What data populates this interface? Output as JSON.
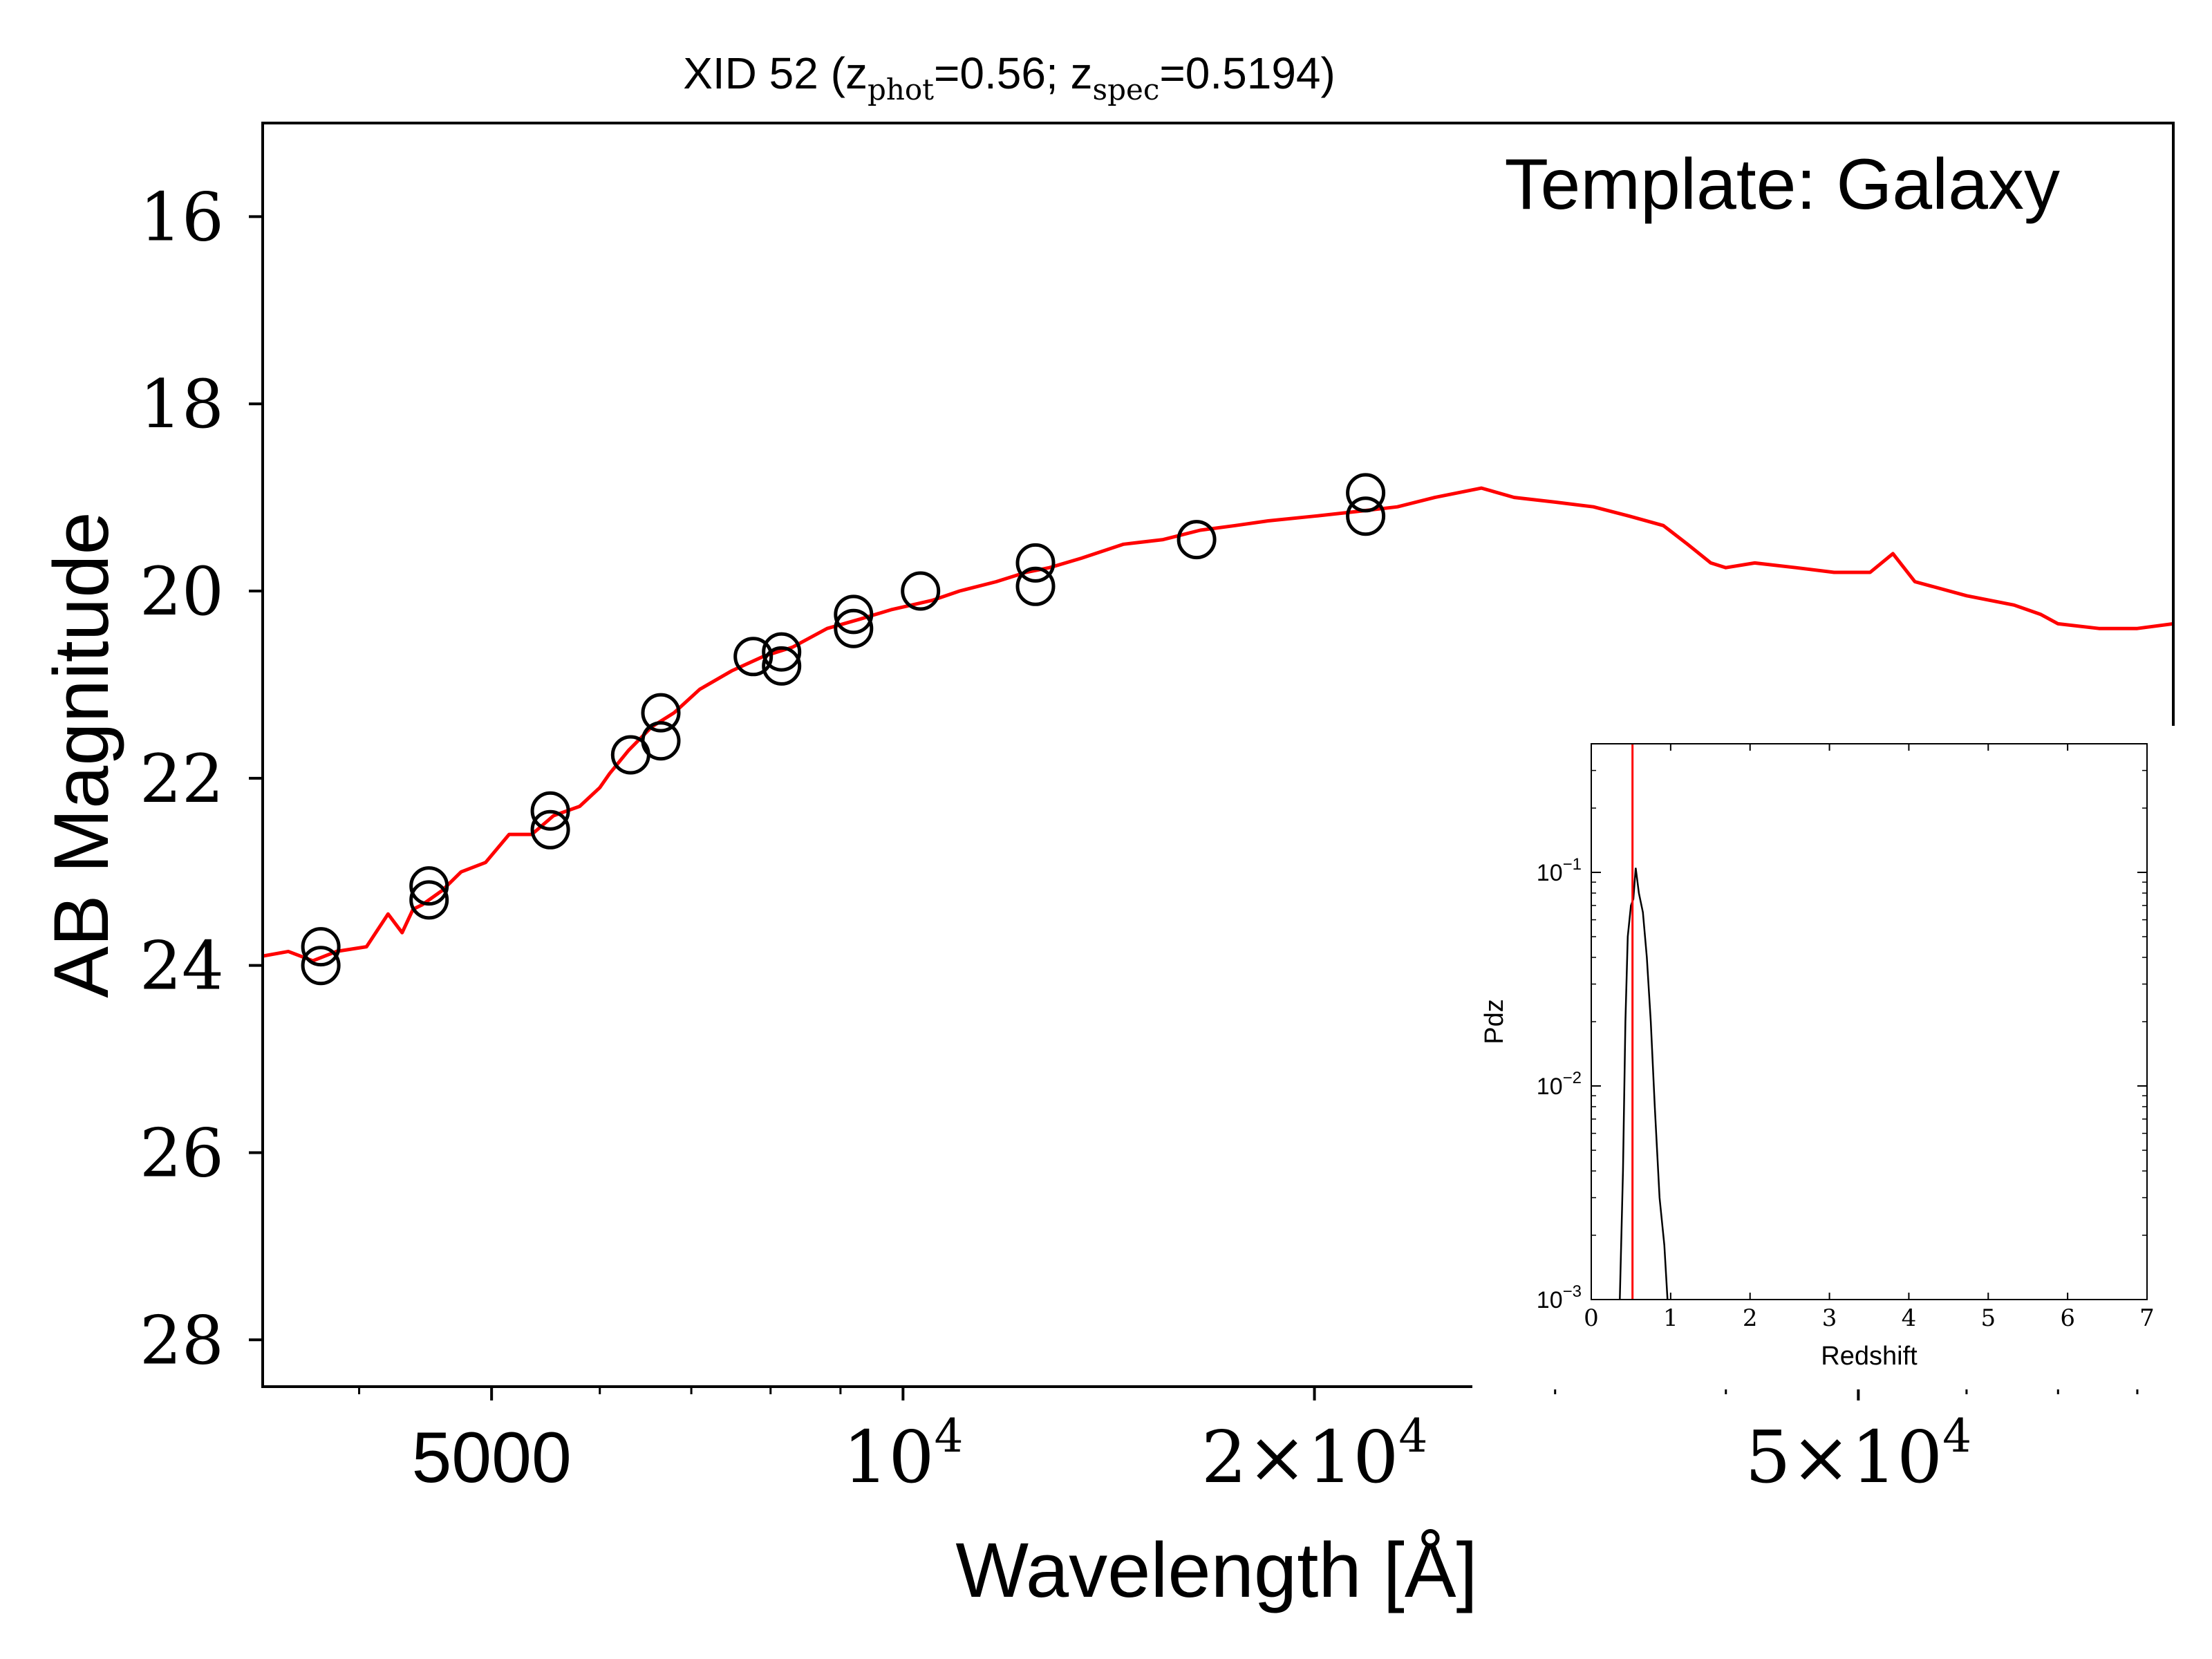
{
  "chart_data": [
    {
      "type": "scatter",
      "title": {
        "prefix": "XID 52 (z",
        "phot_sub": "phot",
        "phot_val": "=0.56; z",
        "spec_sub": "spec",
        "spec_val": "=0.5194)"
      },
      "annotation": "Template: Galaxy",
      "xlabel": "Wavelength [Å]",
      "ylabel": "AB Magnitude",
      "xscale": "log",
      "xlim": [
        3400,
        85000
      ],
      "ylim": [
        28.5,
        15.0
      ],
      "y_inverted": true,
      "grid": false,
      "legend": "none",
      "colors": {
        "template": "#ff0000",
        "photometry": "#000000"
      },
      "xticks": [
        {
          "value": 5000,
          "label": "5000"
        },
        {
          "value": 10000,
          "label": "10",
          "exp": "4"
        },
        {
          "value": 20000,
          "label": "2×10",
          "exp": "4"
        },
        {
          "value": 50000,
          "label": "5×10",
          "exp": "4"
        }
      ],
      "yticks": [
        16,
        18,
        20,
        22,
        24,
        26,
        28
      ],
      "series": [
        {
          "kind": "template_sed",
          "points": [
            [
              3400,
              23.9
            ],
            [
              3550,
              23.85
            ],
            [
              3700,
              23.95
            ],
            [
              3850,
              23.85
            ],
            [
              4050,
              23.8
            ],
            [
              4200,
              23.45
            ],
            [
              4300,
              23.65
            ],
            [
              4380,
              23.4
            ],
            [
              4450,
              23.35
            ],
            [
              4600,
              23.2
            ],
            [
              4750,
              23.0
            ],
            [
              4950,
              22.9
            ],
            [
              5150,
              22.6
            ],
            [
              5350,
              22.6
            ],
            [
              5550,
              22.4
            ],
            [
              5800,
              22.3
            ],
            [
              6000,
              22.1
            ],
            [
              6100,
              21.95
            ],
            [
              6300,
              21.7
            ],
            [
              6550,
              21.45
            ],
            [
              6800,
              21.3
            ],
            [
              7100,
              21.05
            ],
            [
              7500,
              20.85
            ],
            [
              7900,
              20.7
            ],
            [
              8300,
              20.6
            ],
            [
              8800,
              20.4
            ],
            [
              9300,
              20.3
            ],
            [
              9800,
              20.2
            ],
            [
              10500,
              20.1
            ],
            [
              11000,
              20.0
            ],
            [
              11700,
              19.9
            ],
            [
              12300,
              19.8
            ],
            [
              12800,
              19.75
            ],
            [
              13500,
              19.65
            ],
            [
              14500,
              19.5
            ],
            [
              15500,
              19.45
            ],
            [
              16500,
              19.35
            ],
            [
              17500,
              19.3
            ],
            [
              18500,
              19.25
            ],
            [
              20000,
              19.2
            ],
            [
              21500,
              19.15
            ],
            [
              23000,
              19.1
            ],
            [
              24500,
              19.0
            ],
            [
              26500,
              18.9
            ],
            [
              28000,
              19.0
            ],
            [
              30000,
              19.05
            ],
            [
              32000,
              19.1
            ],
            [
              34000,
              19.2
            ],
            [
              36000,
              19.3
            ],
            [
              37500,
              19.5
            ],
            [
              39000,
              19.7
            ],
            [
              40000,
              19.75
            ],
            [
              42000,
              19.7
            ],
            [
              45000,
              19.75
            ],
            [
              48000,
              19.8
            ],
            [
              51000,
              19.8
            ],
            [
              53000,
              19.6
            ],
            [
              55000,
              19.9
            ],
            [
              60000,
              20.05
            ],
            [
              65000,
              20.15
            ],
            [
              68000,
              20.25
            ],
            [
              70000,
              20.35
            ],
            [
              75000,
              20.4
            ],
            [
              80000,
              20.4
            ],
            [
              85000,
              20.35
            ]
          ]
        },
        {
          "kind": "photometry",
          "points": [
            [
              3750,
              23.8
            ],
            [
              3750,
              24.0
            ],
            [
              4500,
              23.15
            ],
            [
              4500,
              23.3
            ],
            [
              5520,
              22.35
            ],
            [
              5520,
              22.55
            ],
            [
              6320,
              21.75
            ],
            [
              6650,
              21.3
            ],
            [
              6650,
              21.6
            ],
            [
              7770,
              20.7
            ],
            [
              8150,
              20.65
            ],
            [
              8150,
              20.8
            ],
            [
              9200,
              20.25
            ],
            [
              9200,
              20.4
            ],
            [
              10300,
              20.0
            ],
            [
              12500,
              19.7
            ],
            [
              12500,
              19.95
            ],
            [
              16400,
              19.45
            ],
            [
              21800,
              18.95
            ],
            [
              21800,
              19.2
            ]
          ]
        }
      ]
    },
    {
      "type": "line",
      "xlabel": "Redshift",
      "ylabel": "Pdz",
      "xlim": [
        0,
        7
      ],
      "ylim": [
        0.001,
        0.4
      ],
      "yscale": "log",
      "xticks": [
        "0",
        "1",
        "2",
        "3",
        "4",
        "5",
        "6",
        "7"
      ],
      "yticks": [
        {
          "value": 0.1,
          "base": "10",
          "exp": "−1"
        },
        {
          "value": 0.01,
          "base": "10",
          "exp": "−2"
        },
        {
          "value": 0.001,
          "base": "10",
          "exp": "−3"
        }
      ],
      "colors": {
        "curve": "#000000",
        "marker": "#ff0000"
      },
      "z_spec": 0.5194,
      "series": [
        {
          "kind": "pdz",
          "points": [
            [
              0.36,
              0.001
            ],
            [
              0.4,
              0.004
            ],
            [
              0.43,
              0.02
            ],
            [
              0.46,
              0.05
            ],
            [
              0.5,
              0.07
            ],
            [
              0.53,
              0.075
            ],
            [
              0.56,
              0.105
            ],
            [
              0.6,
              0.08
            ],
            [
              0.65,
              0.065
            ],
            [
              0.7,
              0.04
            ],
            [
              0.75,
              0.02
            ],
            [
              0.8,
              0.008
            ],
            [
              0.86,
              0.003
            ],
            [
              0.92,
              0.0018
            ],
            [
              0.96,
              0.001
            ]
          ]
        }
      ]
    }
  ]
}
